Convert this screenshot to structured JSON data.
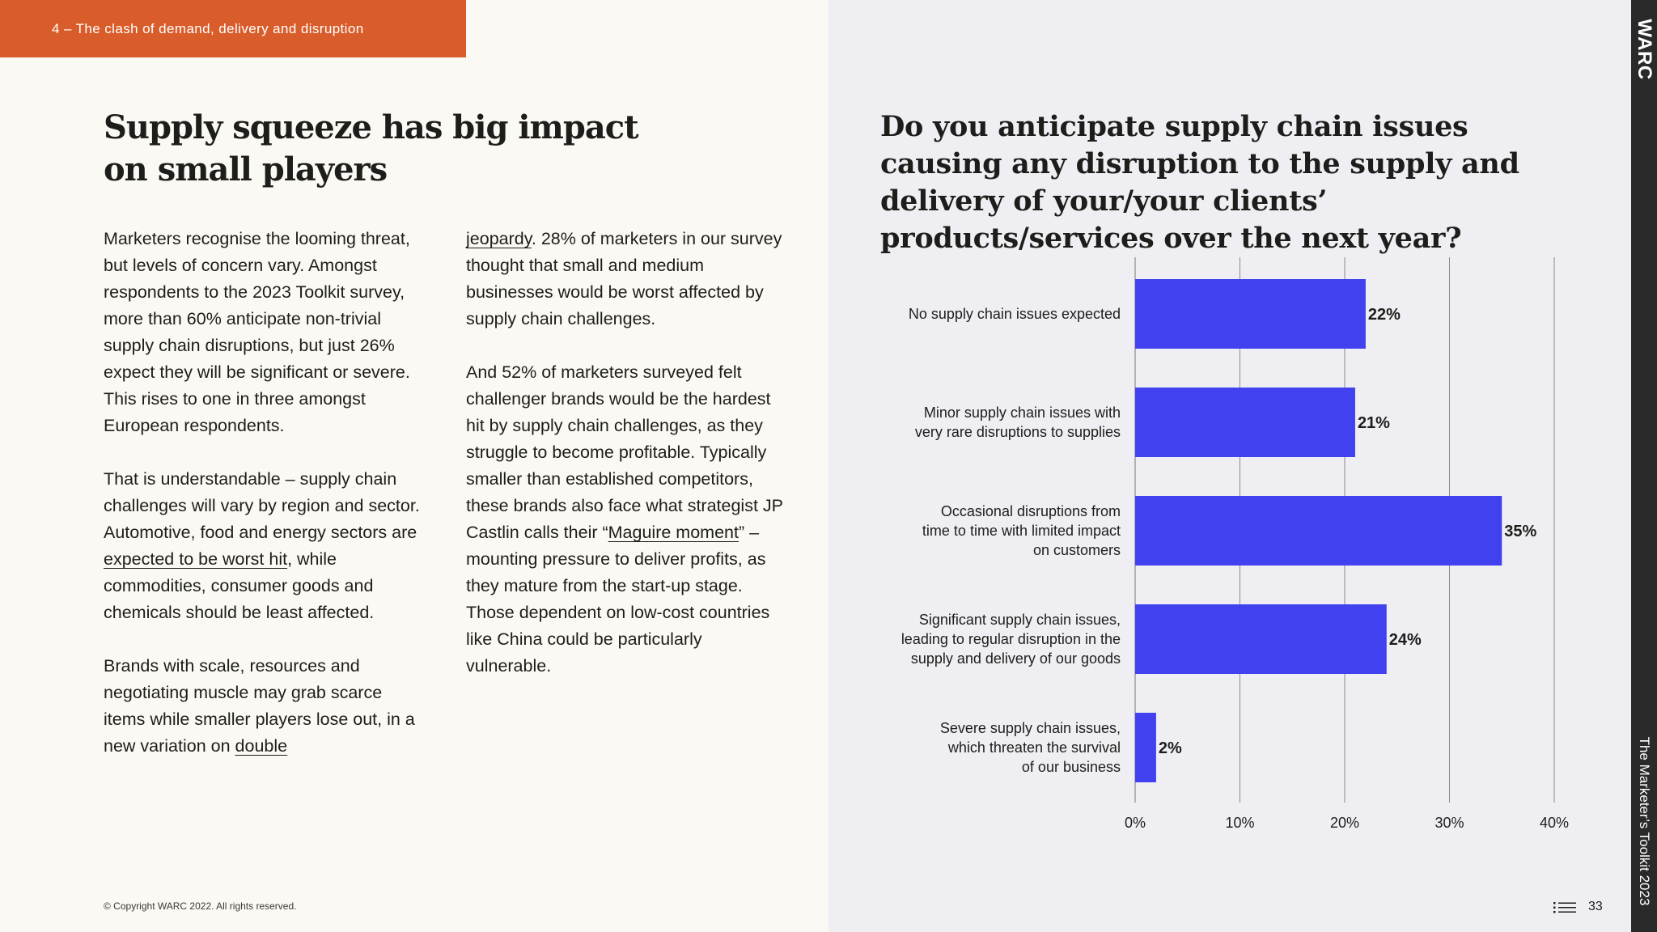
{
  "section_tag": "4 – The clash of demand, delivery and disruption",
  "headline": {
    "line1": "Supply squeeze has big impact",
    "line2": "on small players"
  },
  "col1": {
    "p1": "Marketers recognise the looming threat, but levels of concern vary. Amongst respondents to the 2023 Toolkit survey, more than 60% anticipate non-trivial supply chain disruptions, but just 26% expect they will be significant or severe. This rises to one in three amongst European respondents.",
    "p2_before": "That is understandable – supply chain challenges will vary by region and sector. Automotive, food and energy sectors are ",
    "p2_link": "expected to be worst hit",
    "p2_after": ", while commodities, consumer goods and chemicals should be least affected.",
    "p3_before": "Brands with scale, resources and negotiating muscle may grab scarce items while smaller players lose out, in a new variation on ",
    "p3_link": "double"
  },
  "col2": {
    "p1_link": "jeopardy",
    "p1_after": ". 28% of marketers in our survey thought that small and medium businesses would be worst affected by supply chain challenges.",
    "p2_before": "And 52% of marketers surveyed felt challenger brands would be the hardest hit by supply chain challenges, as they struggle to become profitable. Typically smaller than established competitors, these brands also face what strategist JP Castlin calls their “",
    "p2_link": "Maguire moment",
    "p2_after": "” – mounting pressure to deliver profits, as they mature from the start-up stage. Those dependent on low-cost countries like China could be particularly vulnerable."
  },
  "copyright": "© Copyright WARC 2022. All rights reserved.",
  "question": "Do you anticipate supply chain issues causing any disruption to the supply and delivery of your/your clients’ products/services over the next year?",
  "chart_data": {
    "type": "bar",
    "orientation": "horizontal",
    "categories": [
      [
        "No supply chain issues expected"
      ],
      [
        "Minor supply chain issues with",
        "very rare disruptions to supplies"
      ],
      [
        "Occasional disruptions from",
        "time to time with limited impact",
        "on customers"
      ],
      [
        "Significant supply chain issues,",
        "leading to regular disruption in the",
        "supply and delivery of our goods"
      ],
      [
        "Severe supply chain issues,",
        "which threaten the survival",
        "of our business"
      ]
    ],
    "values": [
      22,
      21,
      35,
      24,
      2
    ],
    "value_labels": [
      "22%",
      "21%",
      "35%",
      "24%",
      "2%"
    ],
    "xlim": [
      0,
      40
    ],
    "ticks": [
      0,
      10,
      20,
      30,
      40
    ],
    "tick_labels": [
      "0%",
      "10%",
      "20%",
      "30%",
      "40%"
    ],
    "grid": true,
    "bar_color": "#4141f0"
  },
  "brand": "WARC",
  "side_title": "The Marketer’s Toolkit 2023",
  "page_number": "33",
  "icons": {
    "menu": "menu-list-icon"
  },
  "colors": {
    "accent": "#d95d2b",
    "bar": "#4141f0",
    "strip": "#2a2a2a"
  }
}
